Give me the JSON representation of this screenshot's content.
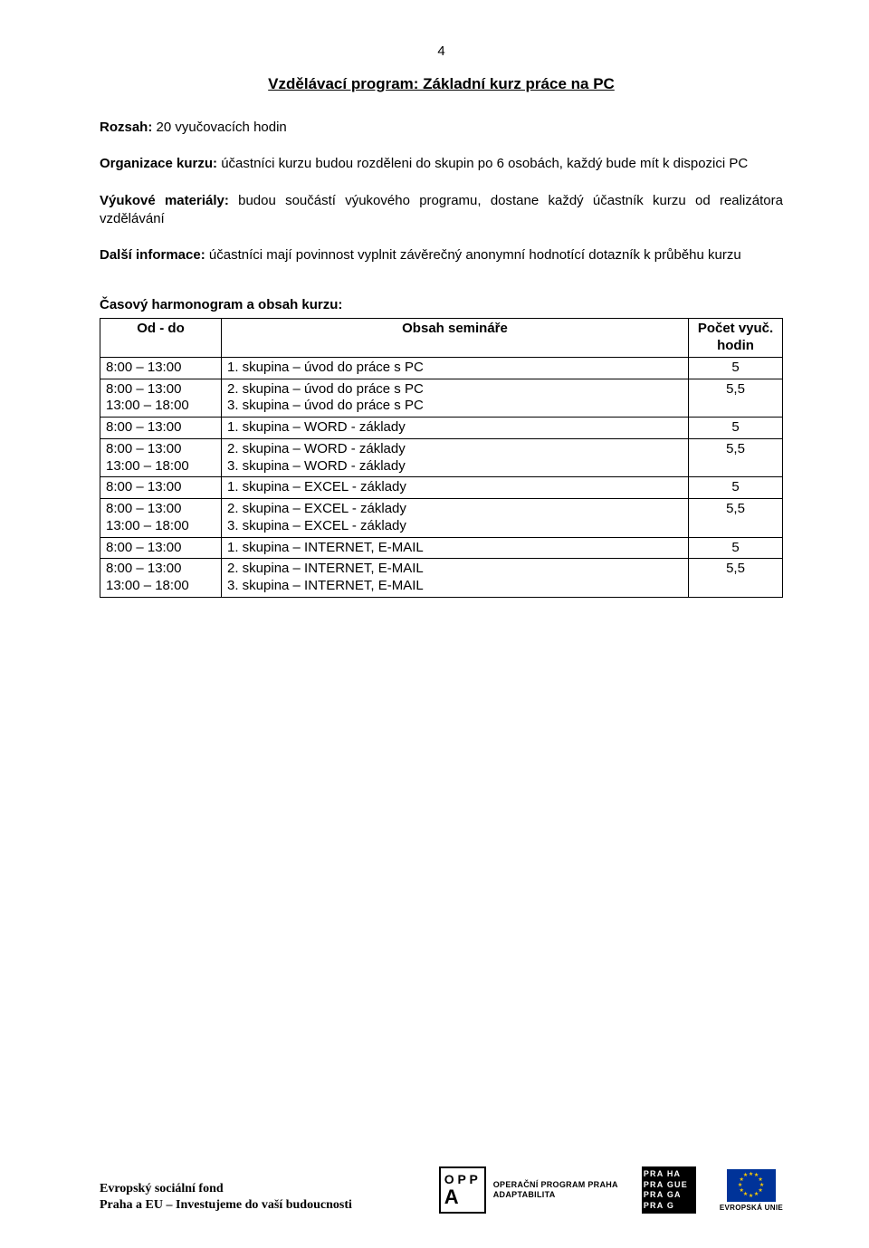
{
  "page_number": "4",
  "title": "Vzdělávací program: Základní kurz práce na PC",
  "paragraphs": {
    "p1": {
      "label": "Rozsah:",
      "text": " 20 vyučovacích hodin"
    },
    "p2": {
      "label": "Organizace kurzu:",
      "text": " účastníci kurzu budou rozděleni do skupin po 6 osobách, každý bude mít k dispozici PC"
    },
    "p3": {
      "label": "Výukové materiály:",
      "text": " budou součástí výukového programu, dostane každý účastník kurzu od realizátora vzdělávání"
    },
    "p4": {
      "label": "Další informace:",
      "text": " účastníci mají povinnost vyplnit závěrečný anonymní hodnotící dotazník k průběhu kurzu"
    }
  },
  "section_heading": "Časový harmonogram a obsah kurzu:",
  "table": {
    "columns": [
      "Od - do",
      "Obsah semináře",
      "Počet vyuč. hodin"
    ],
    "rows": [
      {
        "time": "8:00 – 13:00",
        "content": "1. skupina – úvod do práce s PC",
        "hours": "5"
      },
      {
        "time": "8:00 – 13:00\n13:00 – 18:00",
        "content": "2. skupina – úvod do práce s PC\n3. skupina – úvod do práce s PC",
        "hours": "5,5"
      },
      {
        "time": "8:00 – 13:00",
        "content": "1. skupina – WORD - základy",
        "hours": "5"
      },
      {
        "time": "8:00 – 13:00\n13:00 – 18:00",
        "content": "2. skupina – WORD - základy\n3. skupina – WORD - základy",
        "hours": "5,5"
      },
      {
        "time": "8:00 – 13:00",
        "content": "1. skupina – EXCEL - základy",
        "hours": "5"
      },
      {
        "time": "8:00 – 13:00\n13:00 – 18:00",
        "content": "2. skupina – EXCEL - základy\n3. skupina – EXCEL - základy",
        "hours": "5,5"
      },
      {
        "time": "8:00 – 13:00",
        "content": "1. skupina – INTERNET, E-MAIL",
        "hours": "5"
      },
      {
        "time": "8:00 – 13:00\n13:00 – 18:00",
        "content": "2. skupina – INTERNET, E-MAIL\n3. skupina – INTERNET, E-MAIL",
        "hours": "5,5"
      }
    ]
  },
  "footer": {
    "line1": "Evropský sociální fond",
    "line2": "Praha a EU – Investujeme do vaší budoucnosti",
    "opp_line1": "O P P",
    "opp_line2": "A",
    "opp_text1": "OPERAČNÍ PROGRAM PRAHA",
    "opp_text2": "ADAPTABILITA",
    "praha": [
      "PRA HA",
      "PRA GUE",
      "PRA GA",
      "PRA G"
    ],
    "eu_text": "EVROPSKÁ UNIE"
  },
  "colors": {
    "text": "#000000",
    "background": "#ffffff",
    "eu_blue": "#003399",
    "eu_gold": "#ffcc00",
    "praha_red": "#c8102e"
  }
}
